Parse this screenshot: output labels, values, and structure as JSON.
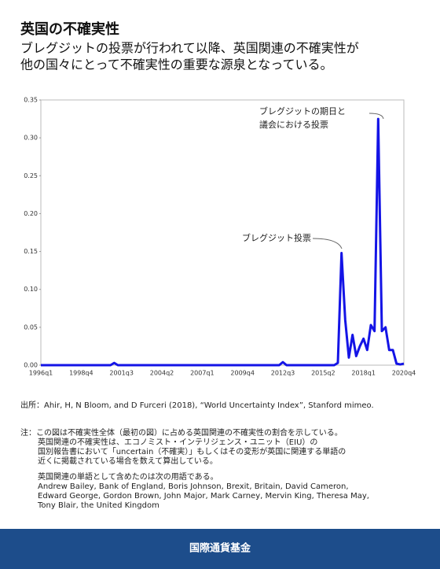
{
  "chart_data": {
    "type": "line",
    "title": "英国の不確実性",
    "subtitle": [
      "ブレグジットの投票が行われて以降、英国関連の不確実性が",
      "他の国々にとって不確実性の重要な源泉となっている。"
    ],
    "categories": [
      "1996q1",
      null,
      null,
      null,
      null,
      null,
      null,
      null,
      null,
      null,
      null,
      "1998q4",
      null,
      null,
      null,
      null,
      null,
      null,
      null,
      null,
      null,
      null,
      "2001q3",
      null,
      null,
      null,
      null,
      null,
      null,
      null,
      null,
      null,
      null,
      "2004q2",
      null,
      null,
      null,
      null,
      null,
      null,
      null,
      null,
      null,
      null,
      "2007q1",
      null,
      null,
      null,
      null,
      null,
      null,
      null,
      null,
      null,
      null,
      "2009q4",
      null,
      null,
      null,
      null,
      null,
      null,
      null,
      null,
      null,
      null,
      "2012q3",
      null,
      null,
      null,
      null,
      null,
      null,
      null,
      null,
      null,
      null,
      "2015q2",
      null,
      null,
      null,
      null,
      null,
      null,
      null,
      null,
      null,
      null,
      "2018q1",
      null,
      null,
      null,
      null,
      null,
      null,
      null,
      null,
      null,
      null,
      "2020q4"
    ],
    "series": [
      {
        "name": null,
        "color": "#1414e6",
        "values": [
          0,
          0,
          0,
          0,
          0,
          0,
          0,
          0,
          0,
          0,
          0,
          0,
          0,
          0,
          0,
          0,
          0,
          0,
          0,
          0,
          0.003,
          0,
          0,
          0,
          0,
          0,
          0,
          0,
          0,
          0,
          0,
          0,
          0,
          0,
          0,
          0,
          0,
          0,
          0,
          0,
          0,
          0,
          0,
          0,
          0,
          0,
          0,
          0,
          0,
          0,
          0,
          0,
          0,
          0,
          0,
          0,
          0,
          0,
          0,
          0,
          0,
          0,
          0,
          0,
          0,
          0,
          0.004,
          0,
          0,
          0,
          0,
          0,
          0,
          0,
          0,
          0,
          0,
          0,
          0,
          0,
          0,
          0.003,
          0.148,
          0.06,
          0.01,
          0.04,
          0.012,
          0.025,
          0.035,
          0.02,
          0.053,
          0.045,
          0.325,
          0.045,
          0.05,
          0.02,
          0.02,
          0.002,
          0.001,
          0.002
        ]
      }
    ],
    "ylim": [
      0,
      0.35
    ],
    "yticks": [
      {
        "value": 0,
        "label": "0.00"
      },
      0.05,
      {
        "value": 0.1,
        "label": "0.10"
      },
      0.15,
      {
        "value": 0.2,
        "label": "0.20"
      },
      0.25,
      {
        "value": 0.3,
        "label": "0.30"
      },
      0.35
    ],
    "annotations": [
      {
        "text": [
          "ブレグジット投票"
        ]
      },
      {
        "text": [
          "ブレグジットの期日と",
          "議会における投票"
        ]
      }
    ],
    "source": "出所：Ahir, H, N Bloom, and D Furceri (2018), “World Uncertainty Index”, Stanford mimeo.",
    "notes": [
      "注：この図は不確実性全体（最初の図）に占める英国関連の不確実性の割合を示している。",
      "英国関連の不確実性は、エコノミスト・インテリジェンス・ユニット（EIU）の",
      "国別報告書において「uncertain（不確実）」もしくはその変形が英国に関連する単語の",
      "近くに掲載されている場合を数えて算出している。",
      "英国関連の単語として含めたのは次の用語である。",
      "Andrew Bailey, Bank of England, Boris Johnson, Brexit, Britain, David Cameron,",
      "Edward George, Gordon Brown, John Major, Mark Carney, Mervin King, Theresa May,",
      "Tony Blair, the United Kingdom"
    ],
    "footer": "国際通貨基金"
  }
}
